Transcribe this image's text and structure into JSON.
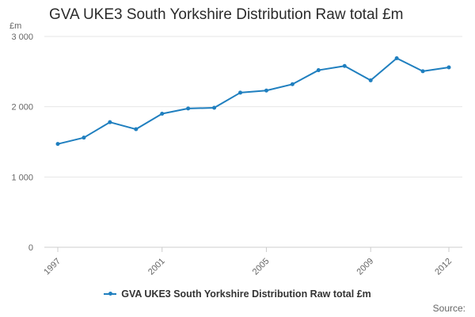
{
  "title": "GVA UKE3 South Yorkshire Distribution Raw total £m",
  "source_label": "Source:",
  "chart_data": {
    "type": "line",
    "title": "GVA UKE3 South Yorkshire Distribution Raw total £m",
    "ylabel": "£m",
    "xlabel": "",
    "ylim": [
      0,
      3000
    ],
    "xlim": [
      1997,
      2012
    ],
    "y_ticks": [
      0,
      1000,
      2000,
      3000
    ],
    "y_tick_labels": [
      "0",
      "1 000",
      "2 000",
      "3 000"
    ],
    "x_ticks": [
      1997,
      2001,
      2005,
      2009,
      2012
    ],
    "x_tick_labels": [
      "1997",
      "2001",
      "2005",
      "2009",
      "2012"
    ],
    "grid": true,
    "legend": "bottom-center",
    "series": [
      {
        "name": "GVA UKE3 South Yorkshire Distribution Raw total £m",
        "color": "#1f7fbf",
        "x": [
          1997,
          1998,
          1999,
          2000,
          2001,
          2002,
          2003,
          2004,
          2005,
          2006,
          2007,
          2008,
          2009,
          2010,
          2011,
          2012
        ],
        "values": [
          1470,
          1560,
          1780,
          1680,
          1900,
          1975,
          1985,
          2200,
          2230,
          2320,
          2520,
          2580,
          2375,
          2690,
          2505,
          2560
        ]
      }
    ]
  }
}
